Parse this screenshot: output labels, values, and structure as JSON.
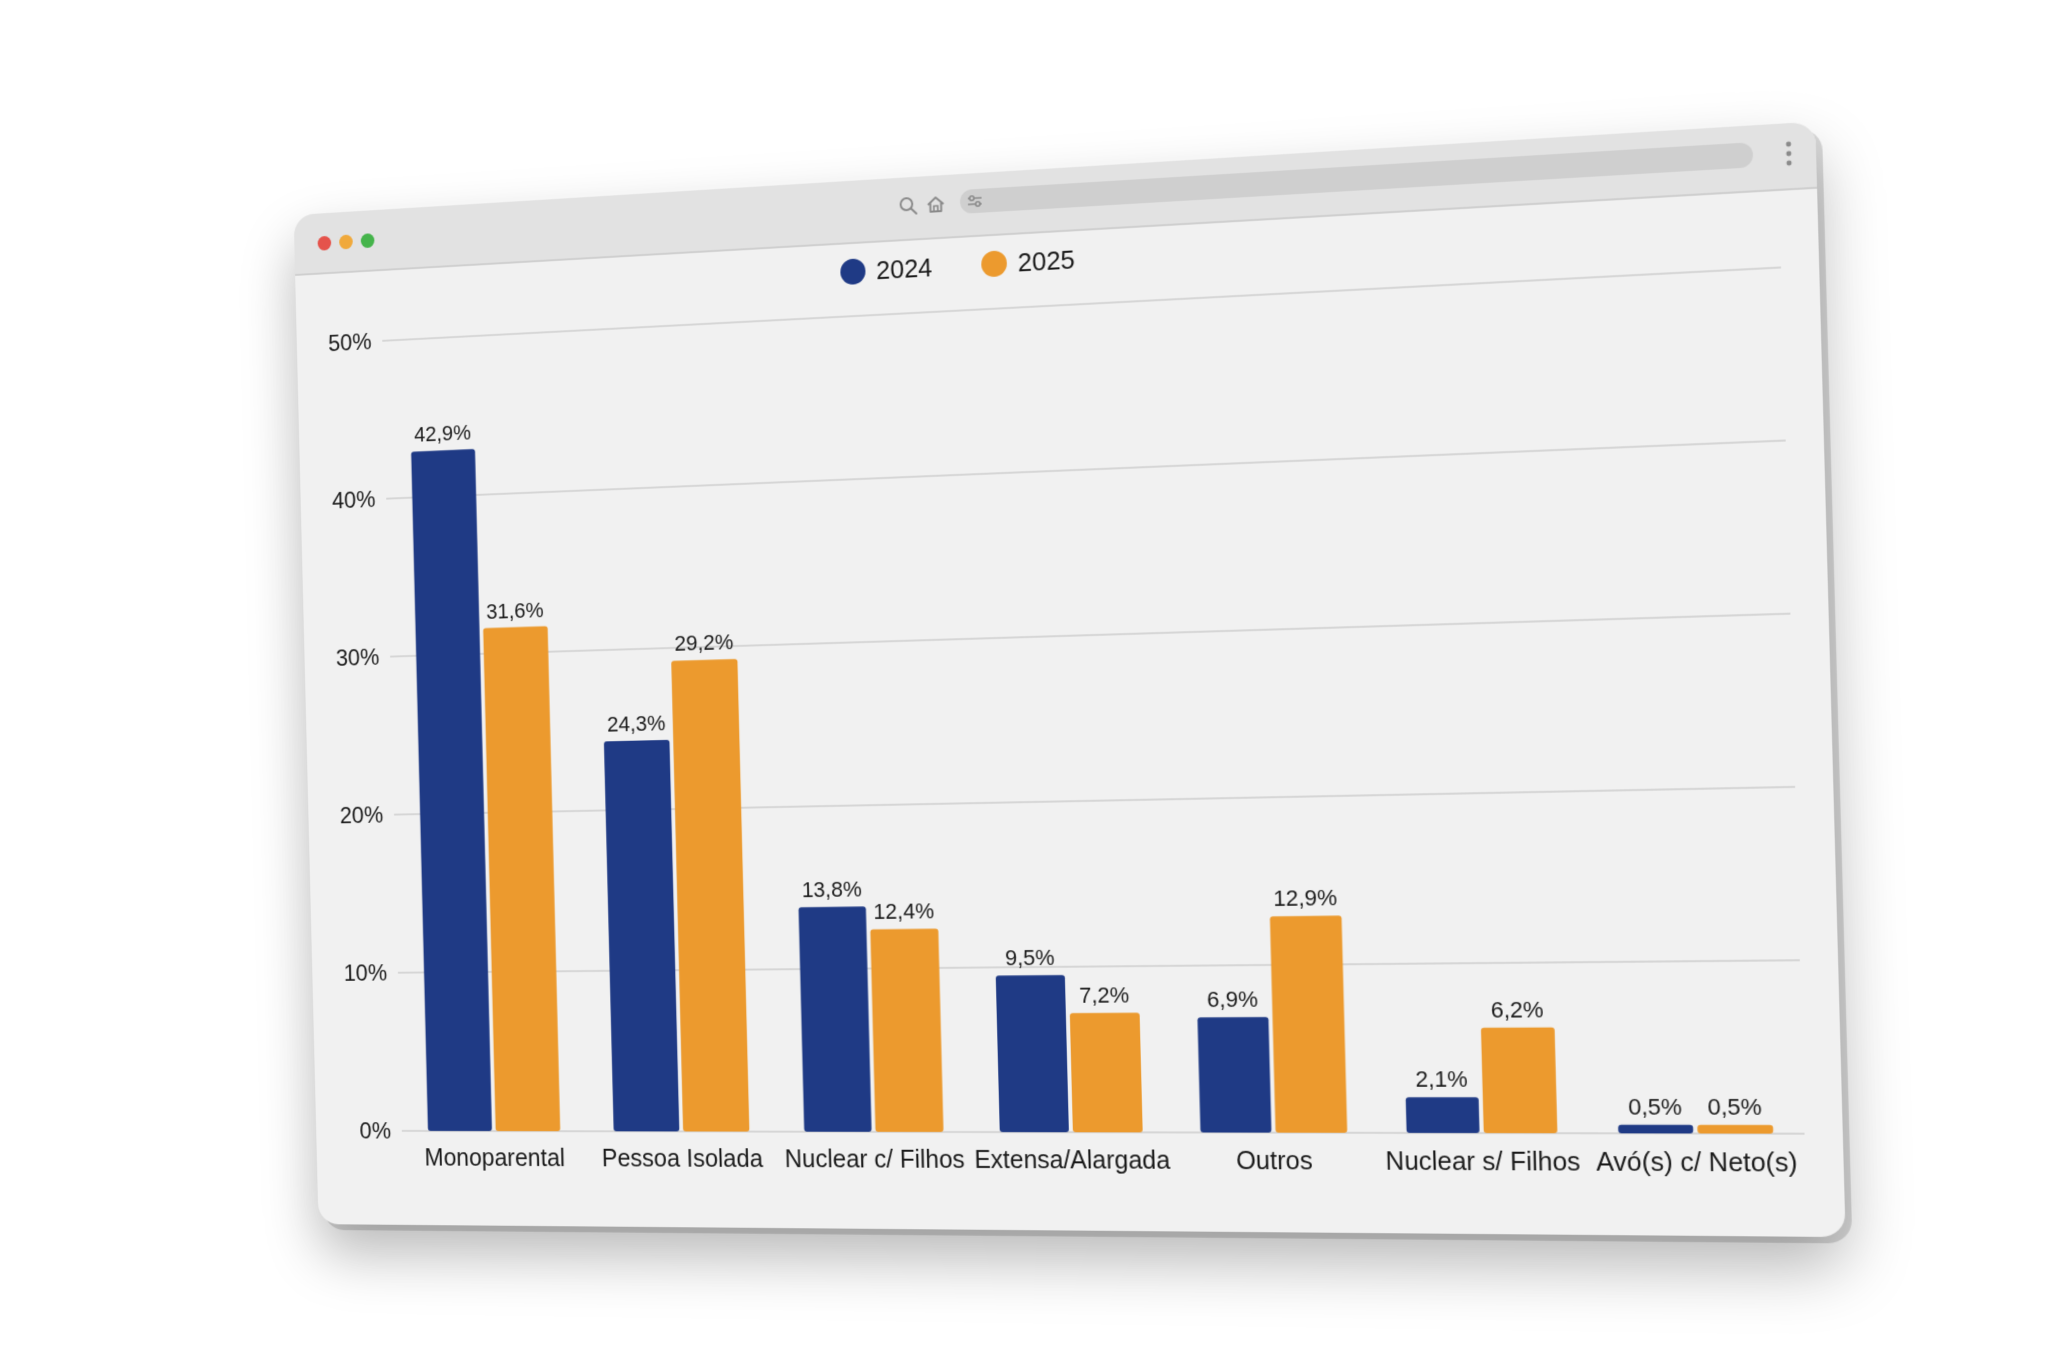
{
  "window": {
    "traffic_lights": [
      "red",
      "yellow",
      "green"
    ]
  },
  "toolbar": {
    "icons": [
      "search-icon",
      "home-icon",
      "settings-sliders-icon",
      "more-vertical-icon"
    ]
  },
  "chart_data": {
    "type": "bar",
    "categories": [
      "Monoparental",
      "Pessoa Isolada",
      "Nuclear c/ Filhos",
      "Extensa/Alargada",
      "Outros",
      "Nuclear s/ Filhos",
      "Avó(s) c/ Neto(s)"
    ],
    "series": [
      {
        "name": "2024",
        "color": "#1f3a85",
        "values": [
          42.9,
          24.3,
          13.8,
          9.5,
          6.9,
          2.1,
          0.5
        ],
        "labels": [
          "42,9%",
          "24,3%",
          "13,8%",
          "9,5%",
          "6,9%",
          "2,1%",
          "0,5%"
        ]
      },
      {
        "name": "2025",
        "color": "#ec9a2e",
        "values": [
          31.6,
          29.2,
          12.4,
          7.2,
          12.9,
          6.2,
          0.5
        ],
        "labels": [
          "31,6%",
          "29,2%",
          "12,4%",
          "7,2%",
          "12,9%",
          "6,2%",
          "0,5%"
        ]
      }
    ],
    "ylim": [
      0,
      50
    ],
    "yticks": [
      0,
      10,
      20,
      30,
      40,
      50
    ],
    "ytick_labels": [
      "0%",
      "10%",
      "20%",
      "30%",
      "40%",
      "50%"
    ],
    "legend_position": "top-center",
    "grid": true,
    "xlabel": "",
    "ylabel": ""
  }
}
